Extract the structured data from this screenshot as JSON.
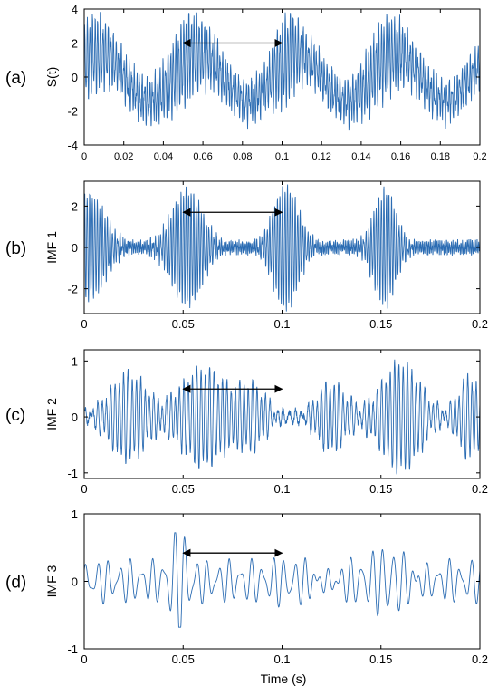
{
  "figure": {
    "xlabel": "Time  (s)"
  },
  "chart_data": [
    {
      "type": "line",
      "panel_label": "(a)",
      "ylabel": "S(t)",
      "xlim": [
        0,
        0.2
      ],
      "ylim": [
        -4,
        4
      ],
      "xticks": [
        0,
        0.02,
        0.04,
        0.06,
        0.08,
        0.1,
        0.12,
        0.14,
        0.16,
        0.18,
        0.2
      ],
      "xtick_labels": [
        "0",
        "0.02",
        "0.04",
        "0.06",
        "0.08",
        "0.1",
        "0.12",
        "0.14",
        "0.16",
        "0.18",
        "0.2"
      ],
      "yticks": [
        -4,
        -2,
        0,
        2,
        4
      ],
      "ytick_labels": [
        "-4",
        "-2",
        "0",
        "2",
        "4"
      ],
      "color": "#2b6cb3",
      "annotation": {
        "type": "double-arrow",
        "x_start": 0.05,
        "x_end": 0.1,
        "y": 2
      },
      "signal": {
        "components": [
          {
            "amp": 1.4,
            "freq": 20,
            "phase": 0.6
          },
          {
            "amp": 0.9,
            "freq": 760,
            "phase": 0
          },
          {
            "amp": 0.5,
            "freq": 1230,
            "phase": 1.1
          }
        ],
        "bursts": [
          {
            "center": 0.003,
            "width": 0.012,
            "amp": 1.2
          },
          {
            "center": 0.052,
            "width": 0.012,
            "amp": 1.4
          },
          {
            "center": 0.102,
            "width": 0.008,
            "amp": 1.5
          },
          {
            "center": 0.152,
            "width": 0.012,
            "amp": 1.2
          }
        ],
        "noise": 0.3,
        "clip": [
          -3.8,
          3.8
        ],
        "samples": 2000
      }
    },
    {
      "type": "line",
      "panel_label": "(b)",
      "ylabel": "IMF 1",
      "xlim": [
        0,
        0.2
      ],
      "ylim": [
        -3.2,
        3.2
      ],
      "xticks": [
        0,
        0.05,
        0.1,
        0.15,
        0.2
      ],
      "xtick_labels": [
        "0",
        "0.05",
        "0.1",
        "0.15",
        "0.2"
      ],
      "yticks": [
        -2,
        0,
        2
      ],
      "ytick_labels": [
        "-2",
        "0",
        "2"
      ],
      "color": "#2b6cb3",
      "annotation": {
        "type": "double-arrow",
        "x_start": 0.05,
        "x_end": 0.1,
        "y": 1.7
      },
      "signal": {
        "components": [
          {
            "amp": 0.25,
            "freq": 1230,
            "phase": 0
          }
        ],
        "bursts": [
          {
            "center": 0.002,
            "width": 0.012,
            "amp": 2.5,
            "freq": 780
          },
          {
            "center": 0.052,
            "width": 0.011,
            "amp": 2.7,
            "freq": 780
          },
          {
            "center": 0.102,
            "width": 0.009,
            "amp": 2.9,
            "freq": 780
          },
          {
            "center": 0.152,
            "width": 0.008,
            "amp": 2.7,
            "freq": 780
          }
        ],
        "noise": 0.15,
        "clip": [
          -3.1,
          3.1
        ],
        "samples": 2000
      }
    },
    {
      "type": "line",
      "panel_label": "(c)",
      "ylabel": "IMF 2",
      "xlim": [
        0,
        0.2
      ],
      "ylim": [
        -1.1,
        1.2
      ],
      "xticks": [
        0,
        0.05,
        0.1,
        0.15,
        0.2
      ],
      "xtick_labels": [
        "0",
        "0.05",
        "0.1",
        "0.15",
        "0.2"
      ],
      "yticks": [
        -1,
        0,
        1
      ],
      "ytick_labels": [
        "-1",
        "0",
        "1"
      ],
      "color": "#2b6cb3",
      "annotation": {
        "type": "double-arrow",
        "x_start": 0.05,
        "x_end": 0.1,
        "y": 0.5
      },
      "signal": {
        "components": [
          {
            "amp": 0.1,
            "freq": 320,
            "phase": 0.4
          }
        ],
        "bursts": [
          {
            "center": 0.022,
            "width": 0.013,
            "amp": 0.75,
            "freq": 460
          },
          {
            "center": 0.06,
            "width": 0.016,
            "amp": 0.85,
            "freq": 460
          },
          {
            "center": 0.085,
            "width": 0.01,
            "amp": 0.5,
            "freq": 460
          },
          {
            "center": 0.125,
            "width": 0.01,
            "amp": 0.6,
            "freq": 460
          },
          {
            "center": 0.16,
            "width": 0.014,
            "amp": 0.95,
            "freq": 460
          },
          {
            "center": 0.195,
            "width": 0.008,
            "amp": 0.7,
            "freq": 460
          }
        ],
        "noise": 0.05,
        "clip": [
          -1.08,
          1.15
        ],
        "samples": 2000
      }
    },
    {
      "type": "line",
      "panel_label": "(d)",
      "ylabel": "IMF 3",
      "xlim": [
        0,
        0.2
      ],
      "ylim": [
        -1,
        1
      ],
      "xticks": [
        0,
        0.05,
        0.1,
        0.15,
        0.2
      ],
      "xtick_labels": [
        "0",
        "0.05",
        "0.1",
        "0.15",
        "0.2"
      ],
      "yticks": [
        -1,
        0,
        1
      ],
      "ytick_labels": [
        "-1",
        "0",
        "1"
      ],
      "color": "#2b6cb3",
      "annotation": {
        "type": "double-arrow",
        "x_start": 0.05,
        "x_end": 0.1,
        "y": 0.42
      },
      "signal": {
        "components": [
          {
            "amp": 0.22,
            "freq": 180,
            "phase": 0.2
          },
          {
            "amp": 0.12,
            "freq": 260,
            "phase": 1.4
          }
        ],
        "bursts": [
          {
            "center": 0.048,
            "width": 0.005,
            "amp": 0.55,
            "freq": 200
          },
          {
            "center": 0.12,
            "width": 0.02,
            "amp": 0.15,
            "freq": 200
          },
          {
            "center": 0.158,
            "width": 0.012,
            "amp": 0.3,
            "freq": 200
          }
        ],
        "noise": 0,
        "clip": [
          -0.68,
          0.72
        ],
        "samples": 2000
      }
    }
  ]
}
